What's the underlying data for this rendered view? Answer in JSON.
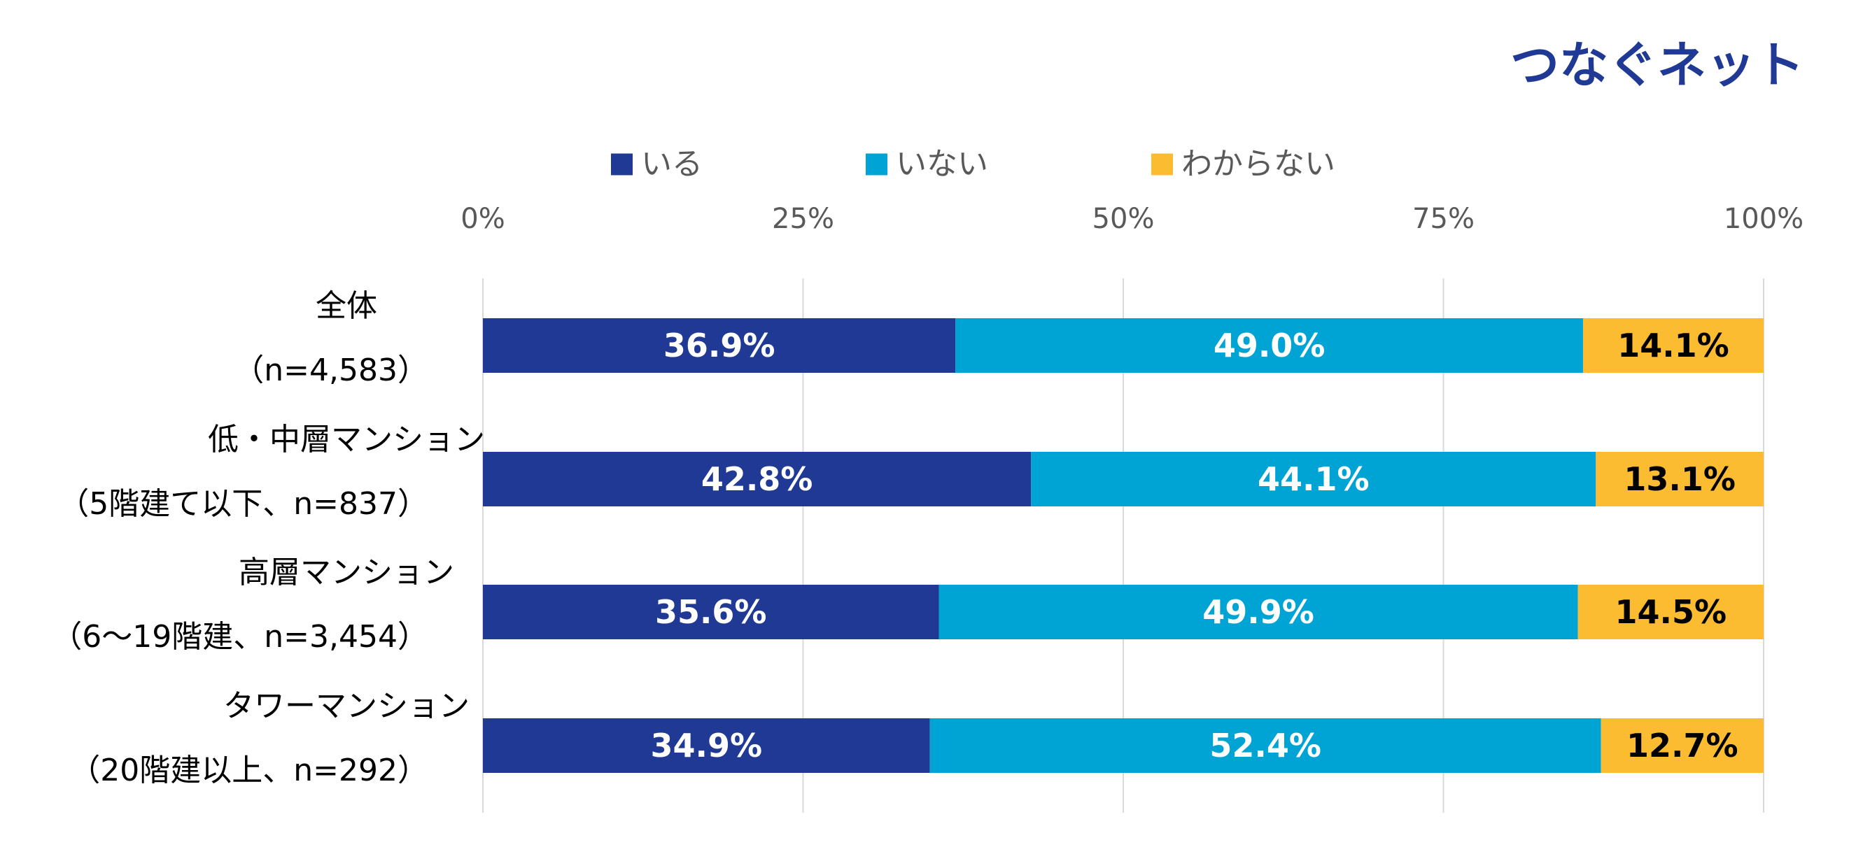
{
  "logo": {
    "text": "つなぐネット",
    "color": "#1F3994"
  },
  "chart_data": {
    "type": "bar",
    "orientation": "horizontal",
    "stacked": true,
    "percent_stacked": true,
    "title": "",
    "xlabel": "",
    "ylabel": "",
    "xlim": [
      0,
      100
    ],
    "x_ticks": [
      "0%",
      "25%",
      "50%",
      "75%",
      "100%"
    ],
    "grid": true,
    "legend_position": "top",
    "categories": [
      {
        "line1": "全体",
        "line2": "（n=4,583）"
      },
      {
        "line1": "低・中層マンション",
        "line2": "（5階建て以下、n=837）"
      },
      {
        "line1": "高層マンション",
        "line2": "（6～19階建、n=3,454）"
      },
      {
        "line1": "タワーマンション",
        "line2": "（20階建以上、n=292）"
      }
    ],
    "series": [
      {
        "name": "いる",
        "color": "#1F3994",
        "label_color": "#ffffff",
        "values": [
          36.9,
          42.8,
          35.6,
          34.9
        ],
        "labels": [
          "36.9%",
          "42.8%",
          "35.6%",
          "34.9%"
        ]
      },
      {
        "name": "いない",
        "color": "#00A4D4",
        "label_color": "#ffffff",
        "values": [
          49.0,
          44.1,
          49.9,
          52.4
        ],
        "labels": [
          "49.0%",
          "44.1%",
          "49.9%",
          "52.4%"
        ]
      },
      {
        "name": "わからない",
        "color": "#FCBC32",
        "label_color": "#000000",
        "values": [
          14.1,
          13.1,
          14.5,
          12.7
        ],
        "labels": [
          "14.1%",
          "13.1%",
          "14.5%",
          "12.7%"
        ]
      }
    ]
  }
}
